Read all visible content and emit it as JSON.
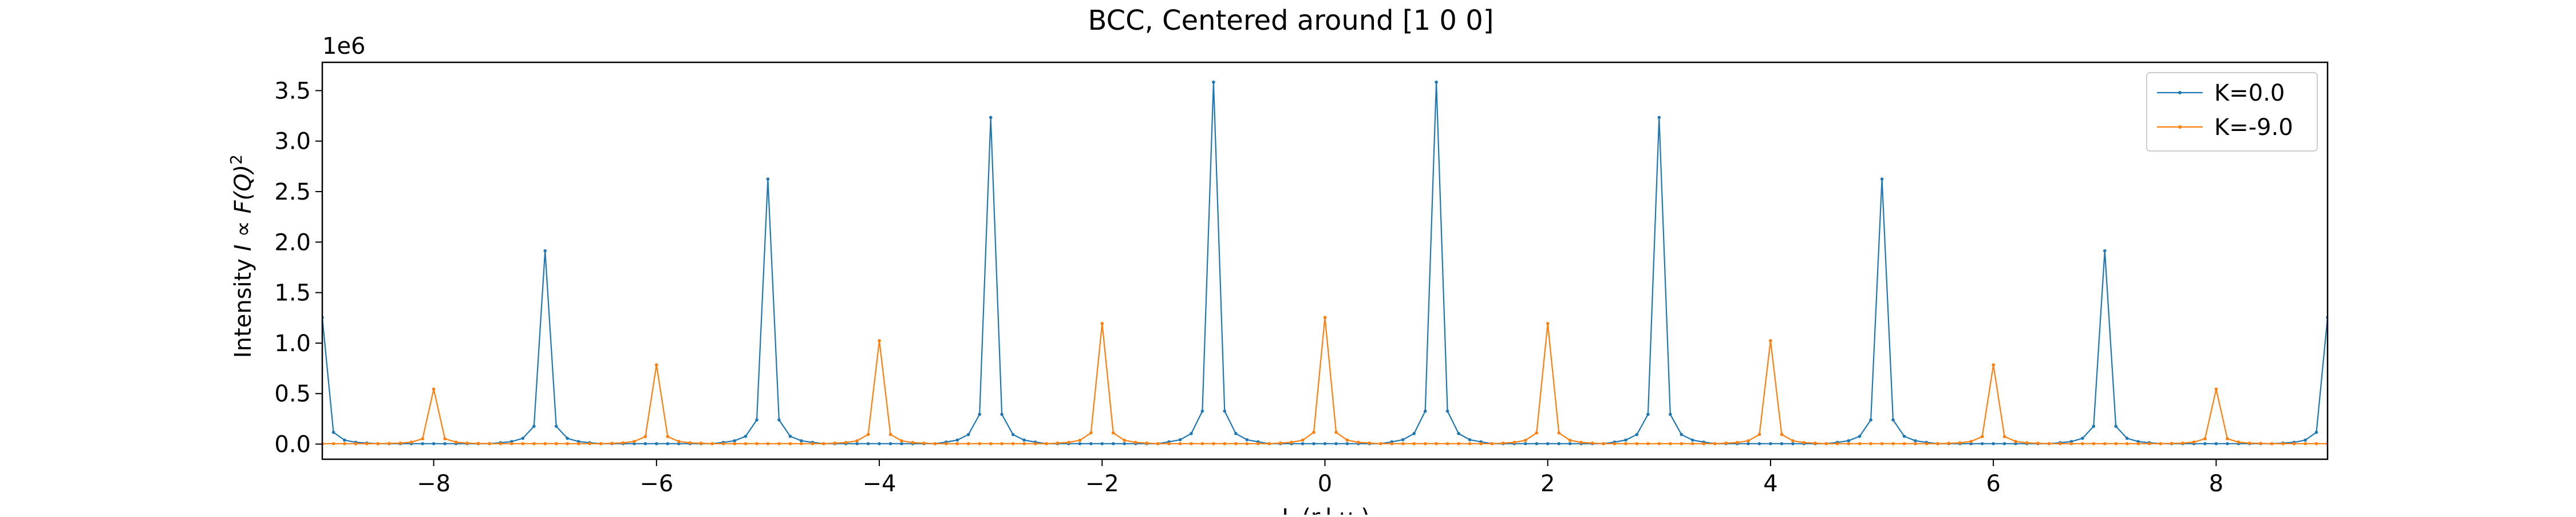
{
  "chart_data": {
    "type": "line",
    "title": "BCC, Centered around [1 0 0]",
    "xlabel": "L (r.l.u.)",
    "ylabel_prefix": "Intensity ",
    "ylabel_math": "I ∝ F(Q)",
    "ylabel_exp": "2",
    "offset_label": "1e6",
    "y_scale": 1000000,
    "xlim": [
      -9,
      9
    ],
    "ylim": [
      -150000,
      3780000
    ],
    "x_ticks": [
      -8,
      -6,
      -4,
      -2,
      0,
      2,
      4,
      6,
      8
    ],
    "x_tick_labels": [
      "−8",
      "−6",
      "−4",
      "−2",
      "0",
      "2",
      "4",
      "6",
      "8"
    ],
    "y_ticks": [
      0,
      500000,
      1000000,
      1500000,
      2000000,
      2500000,
      3000000,
      3500000
    ],
    "y_tick_labels": [
      "0.0",
      "0.5",
      "1.0",
      "1.5",
      "2.0",
      "2.5",
      "3.0",
      "3.5"
    ],
    "grid": false,
    "legend_position": "top-right",
    "sampling_step": 0.1,
    "series": [
      {
        "name": "K=0.0",
        "color": "#1f77b4",
        "peaks": [
          {
            "x": -9,
            "y": 1250000
          },
          {
            "x": -7,
            "y": 1910000
          },
          {
            "x": -5,
            "y": 2620000
          },
          {
            "x": -3,
            "y": 3230000
          },
          {
            "x": -1,
            "y": 3580000
          },
          {
            "x": 1,
            "y": 3580000
          },
          {
            "x": 3,
            "y": 3230000
          },
          {
            "x": 5,
            "y": 2620000
          },
          {
            "x": 7,
            "y": 1910000
          },
          {
            "x": 9,
            "y": 1250000
          }
        ]
      },
      {
        "name": "K=-9.0",
        "color": "#ff7f0e",
        "peaks": [
          {
            "x": -8,
            "y": 540000
          },
          {
            "x": -6,
            "y": 780000
          },
          {
            "x": -4,
            "y": 1020000
          },
          {
            "x": -2,
            "y": 1190000
          },
          {
            "x": 0,
            "y": 1250000
          },
          {
            "x": 2,
            "y": 1190000
          },
          {
            "x": 4,
            "y": 1020000
          },
          {
            "x": 6,
            "y": 780000
          },
          {
            "x": 8,
            "y": 540000
          }
        ]
      }
    ]
  }
}
